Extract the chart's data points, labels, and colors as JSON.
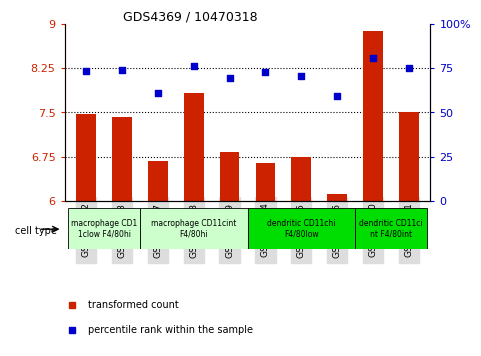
{
  "title": "GDS4369 / 10470318",
  "samples": [
    "GSM687732",
    "GSM687733",
    "GSM687737",
    "GSM687738",
    "GSM687739",
    "GSM687734",
    "GSM687735",
    "GSM687736",
    "GSM687740",
    "GSM687741"
  ],
  "bar_values": [
    7.47,
    7.42,
    6.68,
    7.82,
    6.82,
    6.65,
    6.75,
    6.12,
    8.88,
    7.5
  ],
  "scatter_values_left": [
    8.2,
    8.22,
    7.82,
    8.28,
    8.08,
    8.18,
    8.12,
    7.78,
    8.42,
    8.25
  ],
  "bar_color": "#cc2200",
  "scatter_color": "#0000cc",
  "ylim_left": [
    6,
    9
  ],
  "ylim_right": [
    0,
    100
  ],
  "yticks_left": [
    6,
    6.75,
    7.5,
    8.25,
    9
  ],
  "yticks_right": [
    0,
    25,
    50,
    75,
    100
  ],
  "ytick_labels_left": [
    "6",
    "6.75",
    "7.5",
    "8.25",
    "9"
  ],
  "ytick_labels_right": [
    "0",
    "25",
    "50",
    "75",
    "100%"
  ],
  "hlines": [
    6.75,
    7.5,
    8.25
  ],
  "cell_type_groups": [
    {
      "label": "macrophage CD1\n1clow F4/80hi",
      "start": 0,
      "end": 1,
      "color": "#ccffcc"
    },
    {
      "label": "macrophage CD11cint\nF4/80hi",
      "start": 2,
      "end": 4,
      "color": "#ccffcc"
    },
    {
      "label": "dendritic CD11chi\nF4/80low",
      "start": 5,
      "end": 7,
      "color": "#00dd00"
    },
    {
      "label": "dendritic CD11ci\nnt F4/80int",
      "start": 8,
      "end": 9,
      "color": "#00dd00"
    }
  ],
  "legend_bar_label": "transformed count",
  "legend_scatter_label": "percentile rank within the sample",
  "cell_type_label": "cell type",
  "xticklabel_bg": "#dddddd"
}
